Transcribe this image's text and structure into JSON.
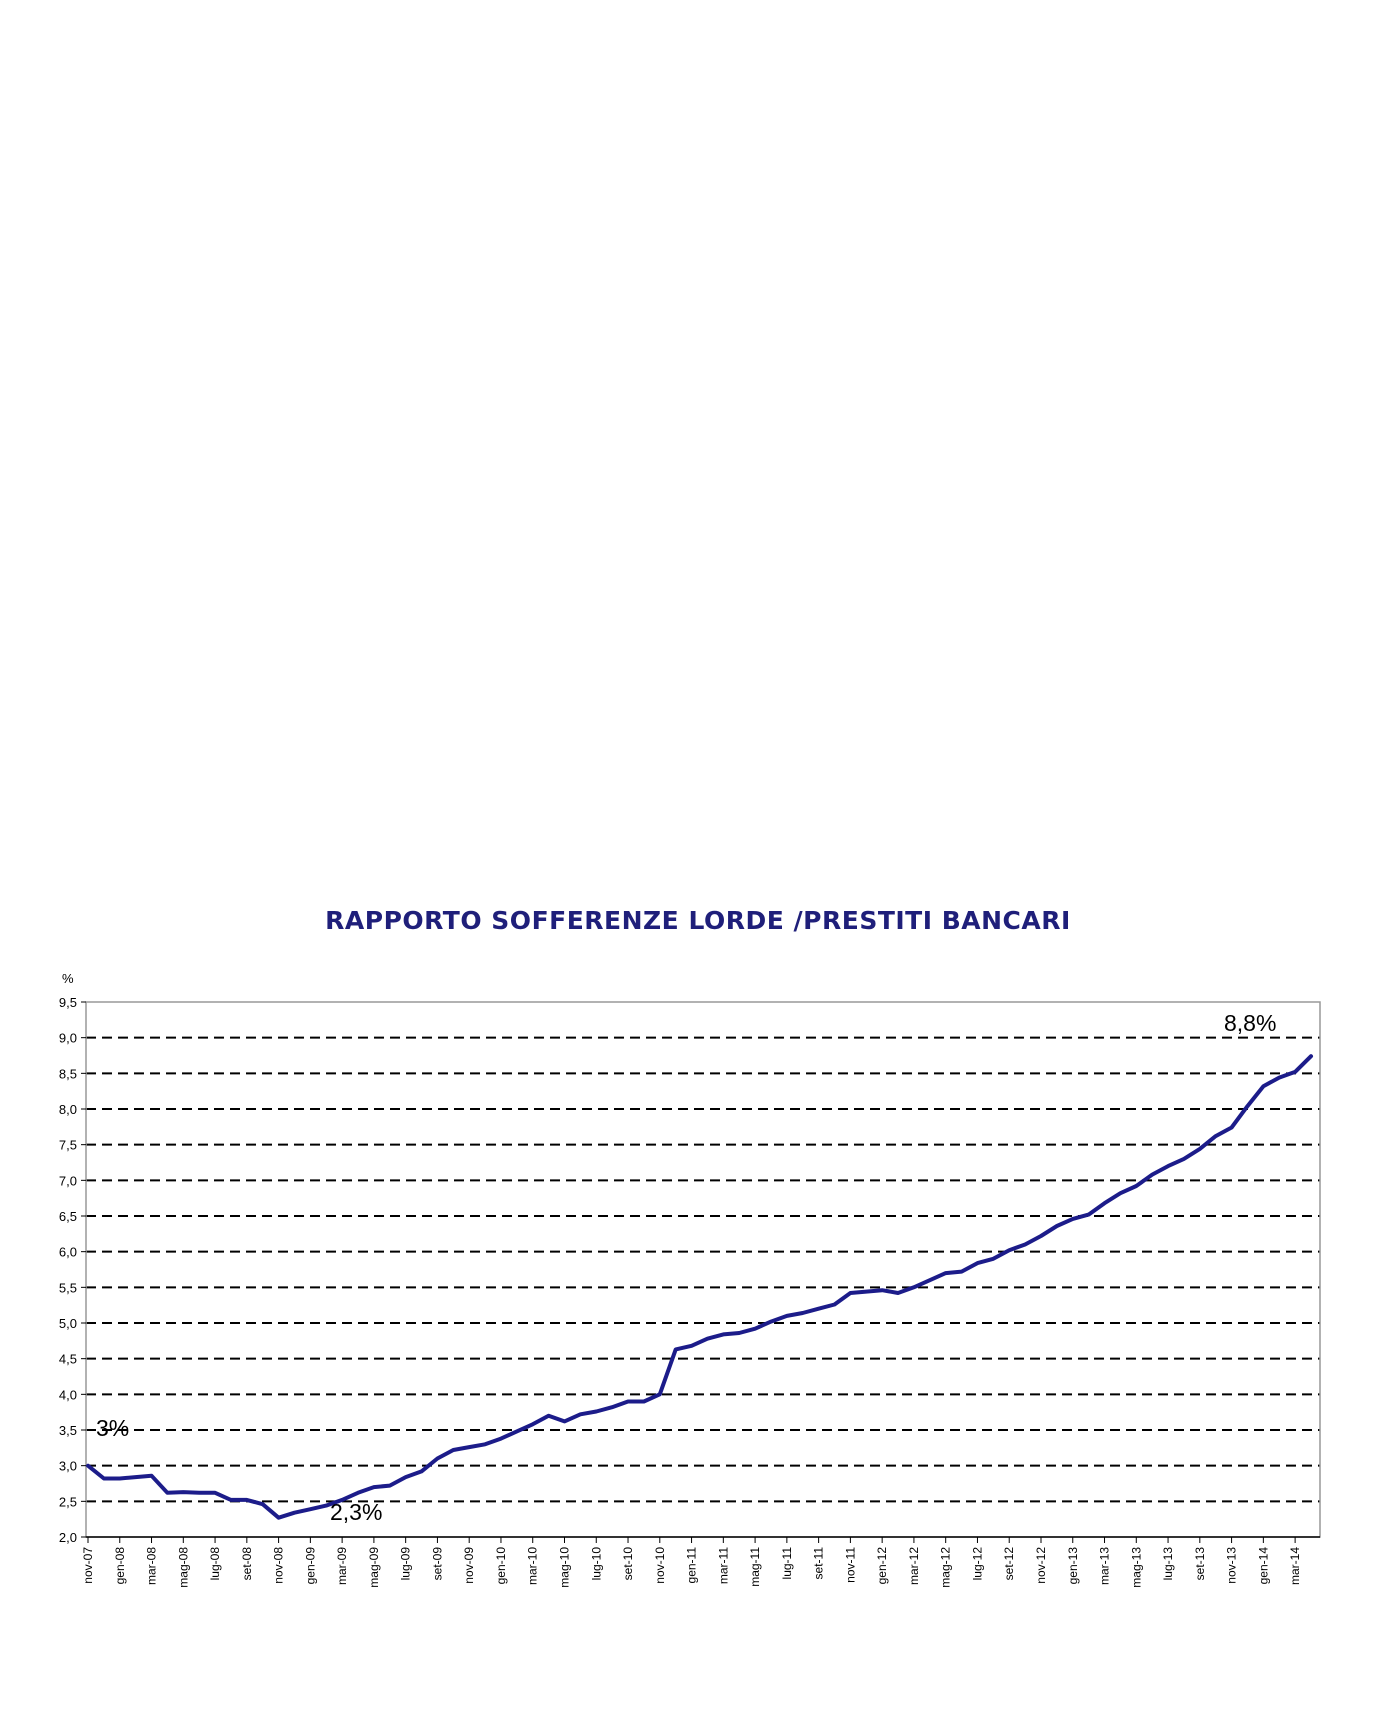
{
  "chart_data": {
    "type": "line",
    "title": "RAPPORTO SOFFERENZE LORDE /PRESTITI BANCARI",
    "ylabel": "%",
    "xlabel": "",
    "ylim": [
      2.0,
      9.5
    ],
    "yticks": [
      "2,0",
      "2,5",
      "3,0",
      "3,5",
      "4,0",
      "4,5",
      "5,0",
      "5,5",
      "6,0",
      "6,5",
      "7,0",
      "7,5",
      "8,0",
      "8,5",
      "9,0",
      "9,5"
    ],
    "grid": "horizontal dashed",
    "x_tick_labels": [
      "nov-07",
      "gen-08",
      "mar-08",
      "mag-08",
      "lug-08",
      "set-08",
      "nov-08",
      "gen-09",
      "mar-09",
      "mag-09",
      "lug-09",
      "set-09",
      "nov-09",
      "gen-10",
      "mar-10",
      "mag-10",
      "lug-10",
      "set-10",
      "nov-10",
      "gen-11",
      "mar-11",
      "mag-11",
      "lug-11",
      "set-11",
      "nov-11",
      "gen-12",
      "mar-12",
      "mag-12",
      "lug-12",
      "set-12",
      "nov-12",
      "gen-13",
      "mar-13",
      "mag-13",
      "lug-13",
      "set-13",
      "nov-13",
      "gen-14",
      "mar-14"
    ],
    "series": [
      {
        "color": "#1c1c8a",
        "values": [
          3.0,
          2.82,
          2.82,
          2.84,
          2.86,
          2.62,
          2.63,
          2.62,
          2.62,
          2.52,
          2.52,
          2.46,
          2.27,
          2.34,
          2.39,
          2.44,
          2.52,
          2.62,
          2.7,
          2.72,
          2.84,
          2.92,
          3.1,
          3.22,
          3.26,
          3.3,
          3.38,
          3.48,
          3.58,
          3.7,
          3.62,
          3.72,
          3.76,
          3.82,
          3.9,
          3.9,
          4.0,
          4.63,
          4.68,
          4.78,
          4.84,
          4.86,
          4.92,
          5.02,
          5.1,
          5.14,
          5.2,
          5.26,
          5.42,
          5.44,
          5.46,
          5.42,
          5.5,
          5.6,
          5.7,
          5.72,
          5.84,
          5.9,
          6.02,
          6.1,
          6.22,
          6.36,
          6.46,
          6.52,
          6.68,
          6.82,
          6.92,
          7.08,
          7.2,
          7.3,
          7.44,
          7.62,
          7.74,
          8.04,
          8.32,
          8.44,
          8.52,
          8.74
        ]
      }
    ],
    "annotations": [
      "3%",
      "2,3%",
      "8,8%"
    ]
  }
}
